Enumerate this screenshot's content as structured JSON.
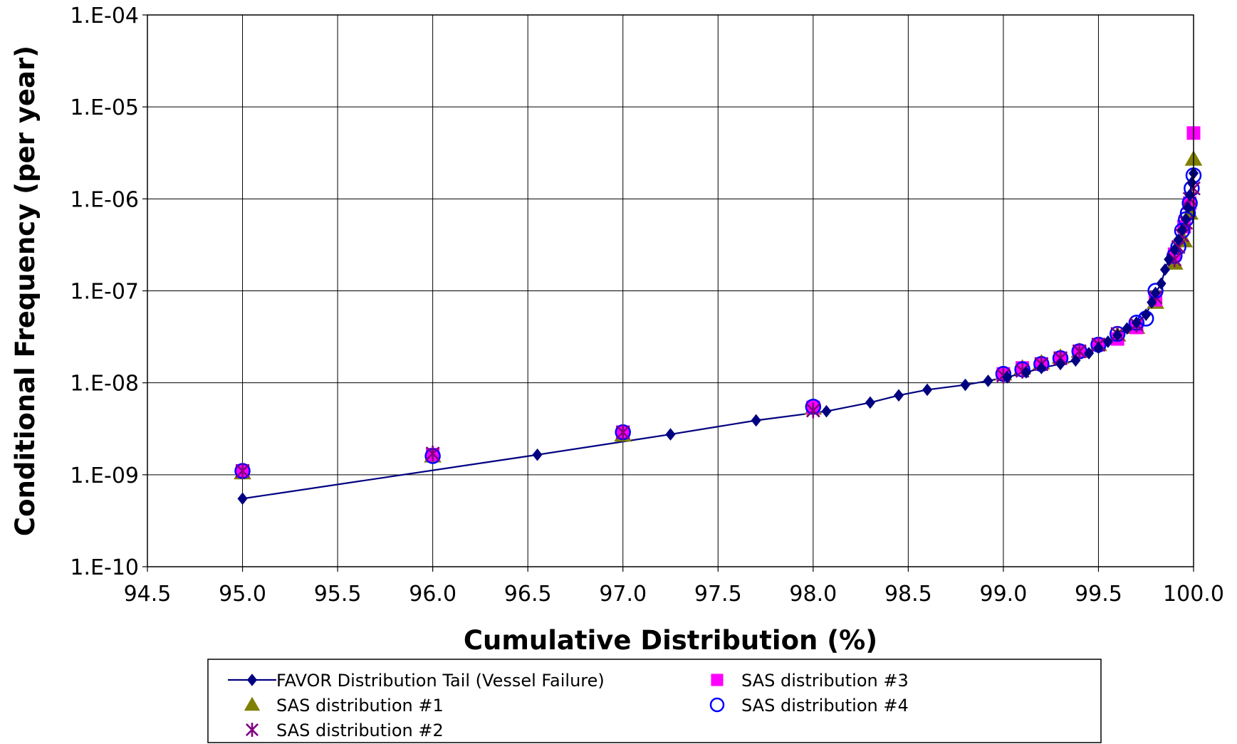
{
  "chart_data": {
    "type": "scatter",
    "title": "",
    "xlabel": "Cumulative Distribution (%)",
    "ylabel": "Conditional Frequency (per year)",
    "xlim": [
      94.5,
      100.0
    ],
    "ylim": [
      1e-10,
      0.0001
    ],
    "yscale": "log",
    "grid": true,
    "legend_position": "bottom",
    "x_ticks": [
      "94.5",
      "95.0",
      "95.5",
      "96.0",
      "96.5",
      "97.0",
      "97.5",
      "98.0",
      "98.5",
      "99.0",
      "99.5",
      "100.0"
    ],
    "y_ticks": [
      "1.E-10",
      "1.E-09",
      "1.E-08",
      "1.E-07",
      "1.E-06",
      "1.E-05",
      "1.E-04"
    ],
    "series": [
      {
        "name": "FAVOR Distribution Tail (Vessel Failure)",
        "marker": "diamond",
        "line": true,
        "color": "#000080",
        "x": [
          95.0,
          96.55,
          97.25,
          97.7,
          98.07,
          98.3,
          98.45,
          98.6,
          98.8,
          98.92,
          99.02,
          99.12,
          99.2,
          99.3,
          99.38,
          99.45,
          99.5,
          99.55,
          99.6,
          99.65,
          99.7,
          99.75,
          99.78,
          99.8,
          99.83,
          99.85,
          99.87,
          99.9,
          99.92,
          99.94,
          99.96,
          99.97,
          99.98,
          99.99,
          100.0
        ],
        "y": [
          5.5e-10,
          1.65e-09,
          2.75e-09,
          3.9e-09,
          4.9e-09,
          6.1e-09,
          7.3e-09,
          8.4e-09,
          9.5e-09,
          1.05e-08,
          1.15e-08,
          1.3e-08,
          1.45e-08,
          1.6e-08,
          1.75e-08,
          2.1e-08,
          2.4e-08,
          2.8e-08,
          3.3e-08,
          3.9e-08,
          4.5e-08,
          5.5e-08,
          7.5e-08,
          9.5e-08,
          1.2e-07,
          1.7e-07,
          2.2e-07,
          2.8e-07,
          3.6e-07,
          4.6e-07,
          6e-07,
          8e-07,
          1.1e-06,
          1.5e-06,
          1.9e-06
        ]
      },
      {
        "name": "SAS distribution #1",
        "marker": "triangle",
        "color": "#808000",
        "x": [
          95.0,
          96.0,
          97.0,
          98.0,
          99.0,
          99.1,
          99.2,
          99.3,
          99.4,
          99.5,
          99.6,
          99.7,
          99.8,
          99.9,
          99.95,
          99.98,
          100.0
        ],
        "y": [
          1.05e-09,
          1.6e-09,
          2.7e-09,
          5.3e-09,
          1.25e-08,
          1.45e-08,
          1.65e-08,
          1.9e-08,
          2.2e-08,
          2.6e-08,
          3.3e-08,
          4e-08,
          7.5e-08,
          2e-07,
          3.5e-07,
          7e-07,
          2.7e-06
        ]
      },
      {
        "name": "SAS distribution #2",
        "marker": "asterisk",
        "color": "#800080",
        "x": [
          95.0,
          96.0,
          97.0,
          98.0,
          99.0,
          99.1,
          99.2,
          99.3,
          99.4,
          99.5,
          99.6,
          99.7,
          99.8,
          99.9,
          99.92,
          99.94,
          99.96,
          99.98,
          100.0
        ],
        "y": [
          1.1e-09,
          1.7e-09,
          2.9e-09,
          5e-09,
          1.2e-08,
          1.35e-08,
          1.6e-08,
          1.85e-08,
          2.2e-08,
          2.6e-08,
          3.4e-08,
          4.3e-08,
          8.5e-08,
          2.2e-07,
          3e-07,
          4e-07,
          5.5e-07,
          1e-06,
          1.3e-06
        ]
      },
      {
        "name": "SAS distribution #3",
        "marker": "square",
        "color": "#FF00FF",
        "x": [
          95.0,
          96.0,
          97.0,
          98.0,
          99.0,
          99.1,
          99.2,
          99.3,
          99.4,
          99.5,
          99.6,
          99.7,
          99.8,
          99.9,
          99.95,
          99.98,
          100.0
        ],
        "y": [
          1.1e-09,
          1.65e-09,
          2.9e-09,
          5.4e-09,
          1.25e-08,
          1.45e-08,
          1.6e-08,
          1.85e-08,
          2.2e-08,
          2.6e-08,
          3e-08,
          4e-08,
          8e-08,
          2.5e-07,
          5e-07,
          9e-07,
          5.2e-06
        ]
      },
      {
        "name": "SAS distribution #4",
        "marker": "circle",
        "color": "#0000FF",
        "x": [
          95.0,
          96.0,
          97.0,
          98.0,
          99.0,
          99.1,
          99.2,
          99.3,
          99.4,
          99.5,
          99.6,
          99.7,
          99.75,
          99.8,
          99.9,
          99.92,
          99.94,
          99.96,
          99.97,
          99.98,
          99.99,
          100.0
        ],
        "y": [
          1.1e-09,
          1.6e-09,
          2.9e-09,
          5.5e-09,
          1.25e-08,
          1.4e-08,
          1.6e-08,
          1.85e-08,
          2.2e-08,
          2.6e-08,
          3.4e-08,
          4.5e-08,
          5e-08,
          1e-07,
          2.4e-07,
          3e-07,
          4.5e-07,
          6e-07,
          7e-07,
          9e-07,
          1.3e-06,
          1.8e-06
        ]
      }
    ]
  }
}
